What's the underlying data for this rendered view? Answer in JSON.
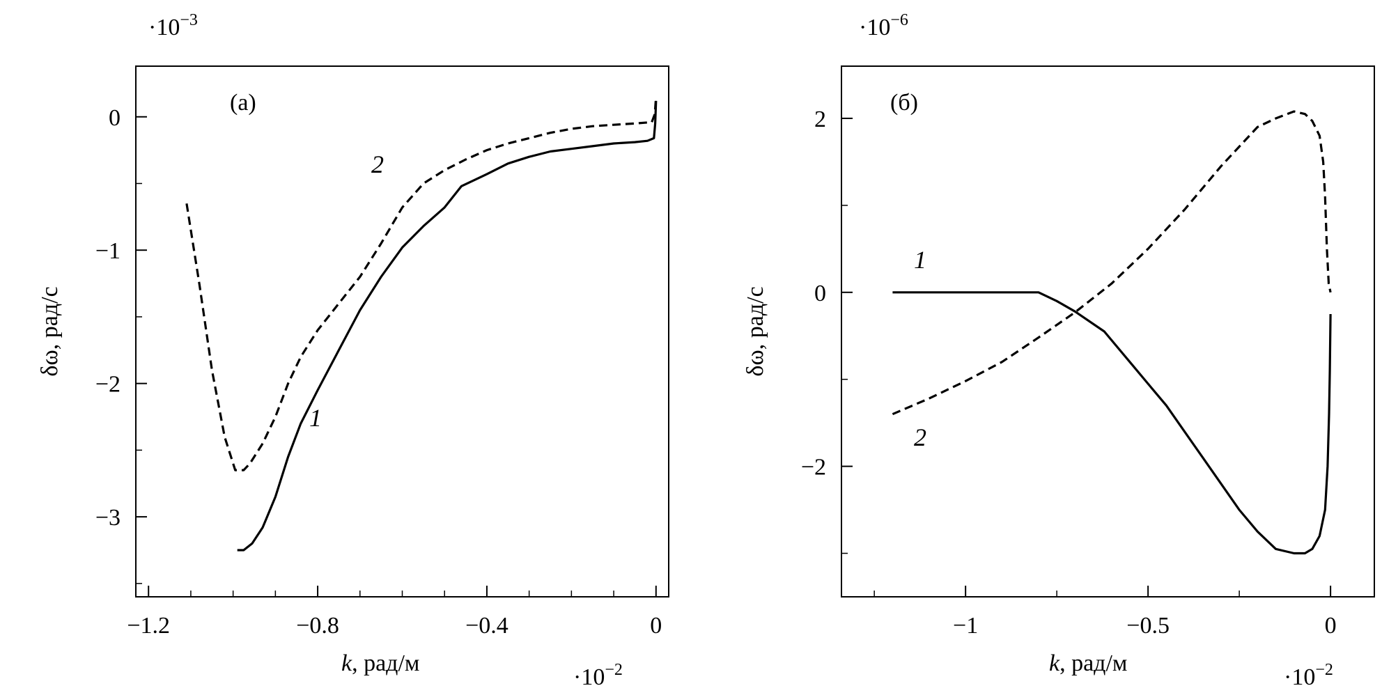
{
  "chart_data": [
    {
      "type": "line",
      "panel_label": "(a)",
      "xlabel_var": "k",
      "xlabel_unit": ", рад/м",
      "ylabel": "δω, рад/с",
      "x_multiplier": "·10",
      "x_multiplier_exp": "−2",
      "y_multiplier": "·10",
      "y_multiplier_exp": "−3",
      "xlim": [
        -1.23,
        0.03
      ],
      "ylim": [
        -3.6,
        0.38
      ],
      "xticks": [
        -1.2,
        -0.8,
        -0.4,
        0
      ],
      "xtick_labels": [
        "−1.2",
        "−0.8",
        "−0.4",
        "0"
      ],
      "yticks": [
        -3,
        -2,
        -1,
        0
      ],
      "ytick_labels": [
        "−3",
        "−2",
        "−1",
        "0"
      ],
      "series": [
        {
          "name": "1",
          "style": "solid",
          "x": [
            -0.99,
            -0.975,
            -0.955,
            -0.93,
            -0.9,
            -0.87,
            -0.84,
            -0.8,
            -0.75,
            -0.7,
            -0.65,
            -0.6,
            -0.55,
            -0.5,
            -0.46,
            -0.4,
            -0.35,
            -0.3,
            -0.25,
            -0.2,
            -0.15,
            -0.1,
            -0.05,
            -0.02,
            -0.005,
            -0.002,
            0
          ],
          "y": [
            -3.25,
            -3.25,
            -3.2,
            -3.08,
            -2.85,
            -2.55,
            -2.3,
            -2.05,
            -1.75,
            -1.45,
            -1.2,
            -0.98,
            -0.82,
            -0.68,
            -0.52,
            -0.43,
            -0.35,
            -0.3,
            -0.26,
            -0.24,
            -0.22,
            -0.2,
            -0.19,
            -0.18,
            -0.16,
            -0.05,
            0.12
          ]
        },
        {
          "name": "2",
          "style": "dashed",
          "x": [
            -1.11,
            -1.08,
            -1.05,
            -1.02,
            -0.995,
            -0.975,
            -0.96,
            -0.93,
            -0.9,
            -0.87,
            -0.84,
            -0.8,
            -0.75,
            -0.7,
            -0.65,
            -0.6,
            -0.55,
            -0.5,
            -0.45,
            -0.4,
            -0.35,
            -0.3,
            -0.25,
            -0.2,
            -0.15,
            -0.1,
            -0.05,
            -0.01,
            -0.003,
            0
          ],
          "y": [
            -0.65,
            -1.25,
            -1.9,
            -2.4,
            -2.65,
            -2.65,
            -2.6,
            -2.45,
            -2.25,
            -2.0,
            -1.8,
            -1.6,
            -1.4,
            -1.2,
            -0.95,
            -0.68,
            -0.5,
            -0.4,
            -0.32,
            -0.25,
            -0.2,
            -0.16,
            -0.12,
            -0.09,
            -0.07,
            -0.06,
            -0.05,
            -0.04,
            0.02,
            0.15
          ]
        }
      ]
    },
    {
      "type": "line",
      "panel_label": "(б)",
      "xlabel_var": "k",
      "xlabel_unit": ", рад/м",
      "ylabel": "δω, рад/с",
      "x_multiplier": "·10",
      "x_multiplier_exp": "−2",
      "y_multiplier": "·10",
      "y_multiplier_exp": "−6",
      "xlim": [
        -1.34,
        0.12
      ],
      "ylim": [
        -3.5,
        2.6
      ],
      "xticks": [
        -1,
        -0.5,
        0
      ],
      "xtick_labels": [
        "−1",
        "−0.5",
        "0"
      ],
      "yticks": [
        -2,
        0,
        2
      ],
      "ytick_labels": [
        "−2",
        "0",
        "2"
      ],
      "series": [
        {
          "name": "1",
          "style": "solid",
          "x": [
            -1.2,
            -1.1,
            -1.0,
            -0.9,
            -0.8,
            -0.75,
            -0.7,
            -0.62,
            -0.55,
            -0.5,
            -0.45,
            -0.4,
            -0.35,
            -0.3,
            -0.25,
            -0.2,
            -0.15,
            -0.1,
            -0.07,
            -0.05,
            -0.03,
            -0.015,
            -0.008,
            -0.004,
            -0.002,
            0
          ],
          "y": [
            0,
            0,
            0,
            0,
            0,
            -0.1,
            -0.22,
            -0.45,
            -0.8,
            -1.05,
            -1.3,
            -1.6,
            -1.9,
            -2.2,
            -2.5,
            -2.75,
            -2.95,
            -3.0,
            -3.0,
            -2.95,
            -2.8,
            -2.5,
            -2.0,
            -1.4,
            -0.9,
            -0.25
          ]
        },
        {
          "name": "2",
          "style": "dashed",
          "x": [
            -1.2,
            -1.1,
            -1.0,
            -0.9,
            -0.8,
            -0.7,
            -0.6,
            -0.5,
            -0.4,
            -0.3,
            -0.2,
            -0.15,
            -0.1,
            -0.07,
            -0.05,
            -0.03,
            -0.02,
            -0.015,
            -0.01,
            -0.005,
            0
          ],
          "y": [
            -1.4,
            -1.22,
            -1.02,
            -0.8,
            -0.52,
            -0.23,
            0.1,
            0.5,
            0.95,
            1.45,
            1.9,
            2.0,
            2.08,
            2.05,
            1.97,
            1.8,
            1.5,
            1.1,
            0.5,
            0.1,
            0
          ]
        }
      ]
    }
  ]
}
